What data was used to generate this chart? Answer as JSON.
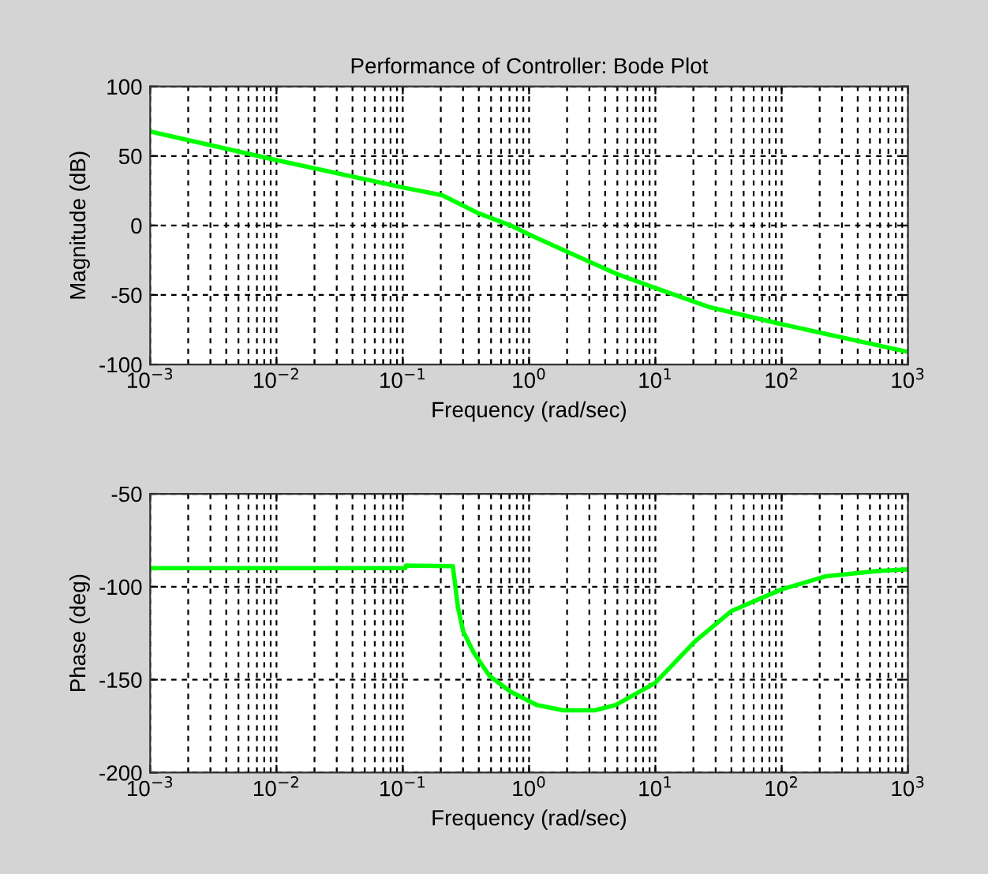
{
  "chart_data": [
    {
      "type": "line",
      "title": "Performance of Controller: Bode Plot",
      "xlabel": "Frequency (rad/sec)",
      "ylabel": "Magnitude (dB)",
      "log": "x",
      "grid": true,
      "line_style": "solid",
      "xlim": [
        0.001,
        1000
      ],
      "xticks": [
        {
          "value": 0.001,
          "label": "10$^{−3}$"
        },
        {
          "value": 0.01,
          "label": "10$^{−2}$"
        },
        {
          "value": 0.1,
          "label": "10$^{−1}$"
        },
        {
          "value": 1,
          "label": "10$^{0}$"
        },
        {
          "value": 10,
          "label": "10$^{1}$"
        },
        {
          "value": 100,
          "label": "10$^{2}$"
        },
        {
          "value": 1000,
          "label": "10$^{3}$"
        }
      ],
      "ylim": [
        -100,
        100
      ],
      "yticks": [
        -100,
        -50,
        0,
        50,
        100
      ],
      "series": [
        {
          "color": "#00ff00",
          "x": [
            0.001,
            0.01,
            0.1,
            0.205,
            0.402,
            0.715,
            1,
            1.87,
            4.87,
            10,
            27.4,
            100,
            1000
          ],
          "values": [
            67.7,
            47,
            27.4,
            21.8,
            8.6,
            0,
            -6.4,
            -17.7,
            -34.6,
            -45,
            -59,
            -71,
            -91
          ]
        }
      ]
    },
    {
      "type": "line",
      "xlabel": "Frequency (rad/sec)",
      "ylabel": "Phase (deg)",
      "log": "x",
      "grid": true,
      "line_style": "solid",
      "xlim": [
        0.001,
        1000
      ],
      "xticks": [
        {
          "value": 0.001,
          "label": "10$^{−3}$"
        },
        {
          "value": 0.01,
          "label": "10$^{−2}$"
        },
        {
          "value": 0.1,
          "label": "10$^{−1}$"
        },
        {
          "value": 1,
          "label": "10$^{0}$"
        },
        {
          "value": 10,
          "label": "10$^{1}$"
        },
        {
          "value": 100,
          "label": "10$^{2}$"
        },
        {
          "value": 1000,
          "label": "10$^{3}$"
        }
      ],
      "ylim": [
        -200,
        -50
      ],
      "yticks": [
        -200,
        -150,
        -100,
        -50
      ],
      "series": [
        {
          "color": "#00ff00",
          "x": [
            0.001,
            0.105,
            0.106,
            0.249,
            0.274,
            0.301,
            0.365,
            0.487,
            0.715,
            1.15,
            1.87,
            3.32,
            4.87,
            10,
            20.5,
            40.2,
            100,
            226,
            589,
            1000
          ],
          "values": [
            -90,
            -90,
            -88.6,
            -88.9,
            -111.4,
            -124,
            -135.5,
            -148,
            -156.5,
            -163.6,
            -166.5,
            -166.5,
            -163.6,
            -151.7,
            -129.5,
            -113,
            -101.4,
            -94.3,
            -91.5,
            -90.6
          ]
        }
      ]
    }
  ]
}
